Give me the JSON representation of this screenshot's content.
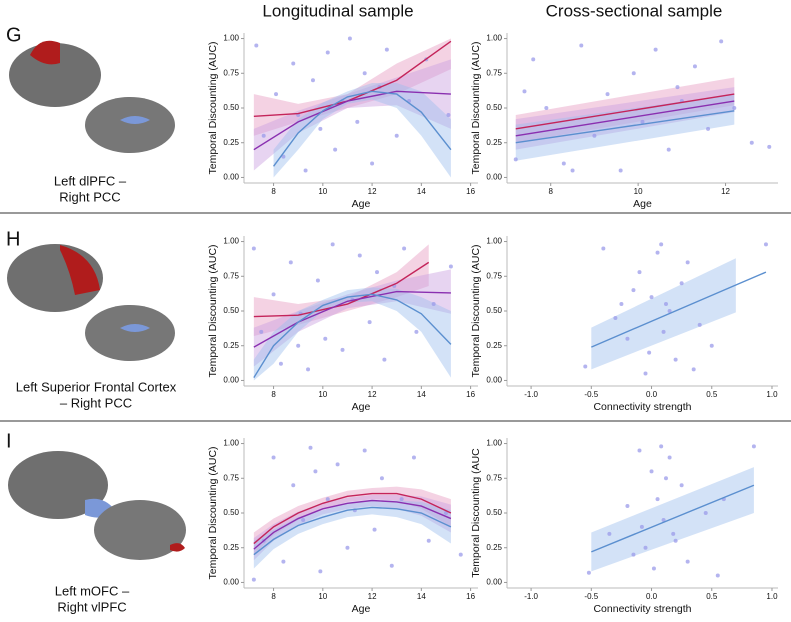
{
  "figure": {
    "column_titles": [
      "Longitudinal sample",
      "Cross-sectional sample"
    ],
    "panels": [
      {
        "letter": "G",
        "caption": [
          "Left dlPFC –",
          "Right PCC"
        ]
      },
      {
        "letter": "H",
        "caption": [
          "Left Superior Frontal Cortex",
          "– Right PCC"
        ]
      },
      {
        "letter": "I",
        "caption": [
          "Left mOFC –",
          "Right vlPFC"
        ]
      }
    ]
  },
  "chart_data": [
    {
      "type": "scatter",
      "xlabel": "Age",
      "ylabel": "Temporal Discounting (AUC)",
      "xlim": [
        6.8,
        16.3
      ],
      "ylim": [
        -0.04,
        1.04
      ],
      "xticks": [
        8,
        10,
        12,
        14,
        16
      ],
      "yticks": [
        {
          "value": 0,
          "label": "0.00"
        },
        {
          "value": 0.25,
          "label": "0.25"
        },
        {
          "value": 0.5,
          "label": "0.50"
        },
        {
          "value": 0.75,
          "label": "0.75"
        },
        {
          "value": 1,
          "label": "1.00"
        }
      ],
      "points": {
        "color": "#9b9bea",
        "x": [
          7.3,
          7.6,
          8.1,
          8.4,
          8.8,
          9.0,
          9.3,
          9.6,
          9.9,
          10.2,
          10.5,
          10.8,
          11.1,
          11.4,
          11.7,
          12.0,
          12.3,
          12.6,
          13.0,
          13.5,
          14.2,
          15.1
        ],
        "y": [
          0.95,
          0.3,
          0.6,
          0.15,
          0.82,
          0.45,
          0.05,
          0.7,
          0.35,
          0.9,
          0.2,
          0.55,
          1.0,
          0.4,
          0.75,
          0.1,
          0.65,
          0.92,
          0.3,
          0.55,
          0.85,
          0.45
        ]
      },
      "fits": [
        {
          "color": "#c4245a",
          "band": "#e79bc0",
          "x": [
            7.2,
            9,
            11,
            13,
            15.2
          ],
          "y": [
            0.44,
            0.46,
            0.55,
            0.7,
            0.98
          ],
          "lower": [
            0.3,
            0.4,
            0.5,
            0.6,
            0.78
          ],
          "upper": [
            0.6,
            0.53,
            0.6,
            0.82,
            1.0
          ]
        },
        {
          "color": "#8a2fb0",
          "band": "#c9a0e0",
          "x": [
            7.2,
            9,
            11,
            13,
            15.2
          ],
          "y": [
            0.2,
            0.4,
            0.55,
            0.62,
            0.6
          ],
          "lower": [
            0.05,
            0.32,
            0.5,
            0.52,
            0.35
          ],
          "upper": [
            0.35,
            0.48,
            0.6,
            0.72,
            0.85
          ]
        },
        {
          "color": "#5b8fcf",
          "band": "#9ebfee",
          "x": [
            8,
            9,
            10,
            11,
            12,
            13,
            14,
            15.2
          ],
          "y": [
            0.08,
            0.32,
            0.48,
            0.58,
            0.62,
            0.6,
            0.47,
            0.2
          ],
          "lower": [
            0,
            0.2,
            0.42,
            0.53,
            0.56,
            0.5,
            0.3,
            0
          ],
          "upper": [
            0.2,
            0.42,
            0.54,
            0.62,
            0.68,
            0.68,
            0.62,
            0.42
          ]
        }
      ]
    },
    {
      "type": "scatter",
      "xlabel": "Age",
      "ylabel": "Temporal Discounting (AUC)",
      "xlim": [
        7,
        13.2
      ],
      "ylim": [
        -0.04,
        1.04
      ],
      "xticks": [
        8,
        10,
        12
      ],
      "yticks": [
        {
          "value": 0,
          "label": "0.00"
        },
        {
          "value": 0.25,
          "label": "0.25"
        },
        {
          "value": 0.5,
          "label": "0.50"
        },
        {
          "value": 0.75,
          "label": "0.75"
        },
        {
          "value": 1,
          "label": "1.00"
        }
      ],
      "points": {
        "color": "#9b9bea",
        "x": [
          7.2,
          7.6,
          7.9,
          8.3,
          8.7,
          9.0,
          9.3,
          9.6,
          9.9,
          10.1,
          10.4,
          10.7,
          11.0,
          11.3,
          11.6,
          11.9,
          12.2,
          12.6,
          13.0,
          7.4,
          8.5,
          10.9
        ],
        "y": [
          0.13,
          0.85,
          0.5,
          0.1,
          0.95,
          0.3,
          0.6,
          0.05,
          0.75,
          0.4,
          0.92,
          0.2,
          0.55,
          0.8,
          0.35,
          0.98,
          0.5,
          0.25,
          0.22,
          0.62,
          0.05,
          0.65
        ]
      },
      "fits": [
        {
          "color": "#c4245a",
          "band": "#e79bc0",
          "x": [
            7.2,
            12.2
          ],
          "y": [
            0.35,
            0.6
          ],
          "lower": [
            0.25,
            0.52
          ],
          "upper": [
            0.45,
            0.72
          ]
        },
        {
          "color": "#8a2fb0",
          "band": "#c9a0e0",
          "x": [
            7.2,
            12.2
          ],
          "y": [
            0.3,
            0.55
          ],
          "lower": [
            0.2,
            0.47
          ],
          "upper": [
            0.42,
            0.65
          ]
        },
        {
          "color": "#5b8fcf",
          "band": "#9ebfee",
          "x": [
            7.2,
            12.2
          ],
          "y": [
            0.25,
            0.48
          ],
          "lower": [
            0.12,
            0.38
          ],
          "upper": [
            0.38,
            0.6
          ]
        }
      ]
    },
    {
      "type": "scatter",
      "xlabel": "Age",
      "ylabel": "Temporal Discounting (AUC)",
      "xlim": [
        6.8,
        16.3
      ],
      "ylim": [
        -0.04,
        1.04
      ],
      "xticks": [
        8,
        10,
        12,
        14,
        16
      ],
      "yticks": [
        {
          "value": 0,
          "label": "0.00"
        },
        {
          "value": 0.25,
          "label": "0.25"
        },
        {
          "value": 0.5,
          "label": "0.50"
        },
        {
          "value": 0.75,
          "label": "0.75"
        },
        {
          "value": 1,
          "label": "1.00"
        }
      ],
      "points": {
        "color": "#9b9bea",
        "x": [
          7.2,
          7.5,
          8.0,
          8.3,
          8.7,
          9.1,
          9.4,
          9.8,
          10.1,
          10.4,
          10.8,
          11.2,
          11.5,
          11.9,
          12.2,
          12.5,
          12.9,
          13.3,
          13.8,
          14.5,
          15.2,
          9.0
        ],
        "y": [
          0.95,
          0.35,
          0.62,
          0.12,
          0.85,
          0.48,
          0.08,
          0.72,
          0.3,
          0.98,
          0.22,
          0.58,
          0.9,
          0.42,
          0.78,
          0.15,
          0.68,
          0.95,
          0.35,
          0.55,
          0.82,
          0.25
        ]
      },
      "fits": [
        {
          "color": "#c4245a",
          "band": "#e79bc0",
          "x": [
            7.2,
            9,
            11,
            13,
            14.3
          ],
          "y": [
            0.46,
            0.47,
            0.55,
            0.7,
            0.85
          ],
          "lower": [
            0.32,
            0.4,
            0.5,
            0.6,
            0.68
          ],
          "upper": [
            0.6,
            0.55,
            0.6,
            0.78,
            0.98
          ]
        },
        {
          "color": "#8a2fb0",
          "band": "#c9a0e0",
          "x": [
            7.2,
            9,
            11,
            13,
            15.2
          ],
          "y": [
            0.24,
            0.42,
            0.57,
            0.64,
            0.63
          ],
          "lower": [
            0.1,
            0.35,
            0.52,
            0.57,
            0.48
          ],
          "upper": [
            0.38,
            0.5,
            0.62,
            0.72,
            0.8
          ]
        },
        {
          "color": "#5b8fcf",
          "band": "#9ebfee",
          "x": [
            7.2,
            8,
            9,
            10,
            11,
            12,
            13,
            14,
            15.2
          ],
          "y": [
            0.02,
            0.25,
            0.42,
            0.54,
            0.6,
            0.62,
            0.58,
            0.48,
            0.26
          ],
          "lower": [
            0,
            0.12,
            0.35,
            0.5,
            0.56,
            0.57,
            0.5,
            0.35,
            0.02
          ],
          "upper": [
            0.15,
            0.35,
            0.5,
            0.58,
            0.65,
            0.67,
            0.66,
            0.6,
            0.5
          ]
        }
      ]
    },
    {
      "type": "scatter",
      "xlabel": "Connectivity strength",
      "ylabel": "Temporal Discounting (AUC)",
      "xlim": [
        -1.2,
        1.05
      ],
      "ylim": [
        -0.04,
        1.04
      ],
      "xticks": [
        {
          "value": -1,
          "label": "-1.0"
        },
        {
          "value": -0.5,
          "label": "-0.5"
        },
        {
          "value": 0,
          "label": "0.0"
        },
        {
          "value": 0.5,
          "label": "0.5"
        },
        {
          "value": 1,
          "label": "1.0"
        }
      ],
      "yticks": [
        {
          "value": 0,
          "label": "0.00"
        },
        {
          "value": 0.25,
          "label": "0.25"
        },
        {
          "value": 0.5,
          "label": "0.50"
        },
        {
          "value": 0.75,
          "label": "0.75"
        },
        {
          "value": 1,
          "label": "1.00"
        }
      ],
      "points": {
        "color": "#9b9bea",
        "x": [
          -0.55,
          -0.4,
          -0.3,
          -0.2,
          -0.1,
          -0.05,
          0,
          0.05,
          0.1,
          0.15,
          0.2,
          0.25,
          0.3,
          0.4,
          0.5,
          -0.15,
          0.08,
          -0.02,
          0.12,
          0.95,
          -0.25,
          0.35
        ],
        "y": [
          0.1,
          0.95,
          0.45,
          0.3,
          0.78,
          0.05,
          0.6,
          0.92,
          0.35,
          0.5,
          0.15,
          0.7,
          0.85,
          0.4,
          0.25,
          0.65,
          0.98,
          0.2,
          0.55,
          0.98,
          0.55,
          0.08
        ]
      },
      "fits": [
        {
          "color": "#5b8fcf",
          "band": "#9ebfee",
          "x": [
            -0.5,
            0.7,
            0.95
          ],
          "y": [
            0.24,
            0.687,
            0.78
          ],
          "lower": [
            0.08,
            0.49,
            null
          ],
          "upper": [
            0.38,
            0.88,
            null
          ]
        }
      ]
    },
    {
      "type": "scatter",
      "xlabel": "Age",
      "ylabel": "Temporal Discounting (AUC)",
      "xlim": [
        6.8,
        16.3
      ],
      "ylim": [
        -0.04,
        1.04
      ],
      "xticks": [
        8,
        10,
        12,
        14,
        16
      ],
      "yticks": [
        {
          "value": 0,
          "label": "0.00"
        },
        {
          "value": 0.25,
          "label": "0.25"
        },
        {
          "value": 0.5,
          "label": "0.50"
        },
        {
          "value": 0.75,
          "label": "0.75"
        },
        {
          "value": 1,
          "label": "1.00"
        }
      ],
      "points": {
        "color": "#9b9bea",
        "x": [
          7.2,
          7.6,
          8.0,
          8.4,
          8.8,
          9.2,
          9.5,
          9.9,
          10.2,
          10.6,
          11.0,
          11.3,
          11.7,
          12.1,
          12.4,
          12.8,
          13.2,
          13.7,
          14.3,
          15.0,
          15.6,
          9.7
        ],
        "y": [
          0.02,
          0.3,
          0.9,
          0.15,
          0.7,
          0.45,
          0.97,
          0.08,
          0.6,
          0.85,
          0.25,
          0.52,
          0.95,
          0.38,
          0.75,
          0.12,
          0.6,
          0.9,
          0.3,
          0.5,
          0.2,
          0.8
        ]
      },
      "fits": [
        {
          "color": "#c4245a",
          "band": "#e79bc0",
          "x": [
            7.2,
            8,
            9,
            10,
            11,
            12,
            13,
            14,
            15.2
          ],
          "y": [
            0.28,
            0.4,
            0.5,
            0.57,
            0.62,
            0.64,
            0.64,
            0.6,
            0.5
          ],
          "lower": [
            0.2,
            0.34,
            0.45,
            0.53,
            0.58,
            0.6,
            0.59,
            0.53,
            0.4
          ],
          "upper": [
            0.36,
            0.46,
            0.55,
            0.61,
            0.66,
            0.68,
            0.69,
            0.67,
            0.6
          ]
        },
        {
          "color": "#8a2fb0",
          "band": "#c9a0e0",
          "x": [
            7.2,
            8,
            9,
            10,
            11,
            12,
            13,
            14,
            15.2
          ],
          "y": [
            0.24,
            0.36,
            0.46,
            0.53,
            0.57,
            0.59,
            0.58,
            0.55,
            0.46
          ],
          "lower": [
            0.16,
            0.3,
            0.41,
            0.49,
            0.53,
            0.55,
            0.53,
            0.48,
            0.36
          ],
          "upper": [
            0.32,
            0.42,
            0.51,
            0.57,
            0.61,
            0.63,
            0.63,
            0.62,
            0.56
          ]
        },
        {
          "color": "#5b8fcf",
          "band": "#9ebfee",
          "x": [
            7.2,
            8,
            9,
            10,
            11,
            12,
            13,
            14,
            15.2
          ],
          "y": [
            0.2,
            0.31,
            0.41,
            0.47,
            0.52,
            0.54,
            0.53,
            0.5,
            0.4
          ],
          "lower": [
            0.1,
            0.24,
            0.35,
            0.42,
            0.47,
            0.49,
            0.47,
            0.42,
            0.28
          ],
          "upper": [
            0.3,
            0.38,
            0.47,
            0.52,
            0.57,
            0.59,
            0.59,
            0.58,
            0.52
          ]
        }
      ]
    },
    {
      "type": "scatter",
      "xlabel": "Connectivity strength",
      "ylabel": "Temporal Discounting (AUC",
      "xlim": [
        -1.2,
        1.05
      ],
      "ylim": [
        -0.04,
        1.04
      ],
      "xticks": [
        {
          "value": -1,
          "label": "-1.0"
        },
        {
          "value": -0.5,
          "label": "-0.5"
        },
        {
          "value": 0,
          "label": "0.0"
        },
        {
          "value": 0.5,
          "label": "0.5"
        },
        {
          "value": 1,
          "label": "1.0"
        }
      ],
      "yticks": [
        {
          "value": 0,
          "label": "0.00"
        },
        {
          "value": 0.25,
          "label": "0.25"
        },
        {
          "value": 0.5,
          "label": "0.50"
        },
        {
          "value": 0.75,
          "label": "0.75"
        },
        {
          "value": 1,
          "label": "1.00"
        }
      ],
      "points": {
        "color": "#9b9bea",
        "x": [
          -0.52,
          -0.35,
          -0.2,
          -0.1,
          -0.05,
          0,
          0.02,
          0.05,
          0.1,
          0.15,
          0.2,
          0.25,
          0.3,
          0.45,
          0.6,
          0.85,
          -0.08,
          0.12,
          -0.15,
          0.08,
          0.18,
          0.55
        ],
        "y": [
          0.07,
          0.35,
          0.55,
          0.95,
          0.25,
          0.8,
          0.1,
          0.6,
          0.45,
          0.9,
          0.3,
          0.7,
          0.15,
          0.5,
          0.6,
          0.98,
          0.4,
          0.75,
          0.2,
          0.98,
          0.35,
          0.05
        ]
      },
      "fits": [
        {
          "color": "#5b8fcf",
          "band": "#9ebfee",
          "x": [
            -0.5,
            0.85
          ],
          "y": [
            0.22,
            0.7
          ],
          "lower": [
            0.08,
            0.5
          ],
          "upper": [
            0.36,
            0.83
          ]
        }
      ]
    }
  ]
}
